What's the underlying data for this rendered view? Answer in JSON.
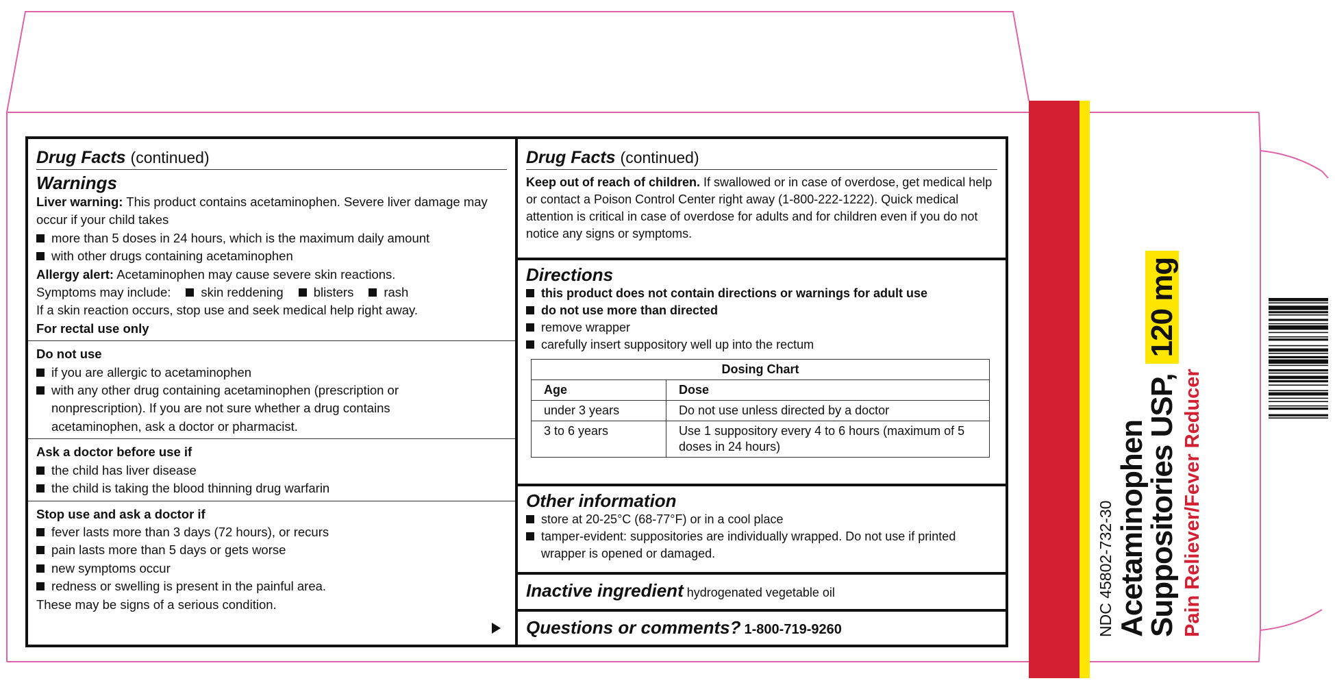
{
  "left_panel": {
    "header": {
      "title": "Drug Facts",
      "suffix": "(continued)"
    },
    "warnings": {
      "heading": "Warnings",
      "liver_label": "Liver warning:",
      "liver_text": "This product contains acetaminophen. Severe liver damage may occur if your child takes",
      "liver_items": [
        "more than 5 doses in 24 hours, which is the maximum daily amount",
        "with other drugs containing acetaminophen"
      ],
      "allergy_label": "Allergy alert:",
      "allergy_text": "Acetaminophen may cause severe skin reactions.",
      "symptoms_intro": "Symptoms may include:",
      "symptoms": [
        "skin reddening",
        "blisters",
        "rash"
      ],
      "skin_reaction": "If a skin reaction occurs, stop use and seek medical help right away.",
      "rectal": "For rectal use only"
    },
    "do_not_use": {
      "heading": "Do not use",
      "items": [
        "if you are allergic to acetaminophen",
        "with any other drug containing acetaminophen (prescription or nonprescription). If you are not sure whether a drug contains acetaminophen, ask a doctor or pharmacist."
      ]
    },
    "ask_doctor": {
      "heading": "Ask a doctor before use if",
      "items": [
        "the child has liver disease",
        "the child is taking the blood thinning drug warfarin"
      ]
    },
    "stop_use": {
      "heading": "Stop use and ask a doctor if",
      "items": [
        "fever lasts more than 3 days (72 hours), or recurs",
        "pain lasts more than 5 days or gets worse",
        "new symptoms occur",
        "redness or swelling is present in the painful area."
      ],
      "footer": "These may be signs of a serious condition."
    }
  },
  "right_panel": {
    "header": {
      "title": "Drug Facts",
      "suffix": "(continued)"
    },
    "keep_out": {
      "label": "Keep out of reach of children.",
      "text": "If swallowed or in case of overdose, get medical help or contact a Poison Control Center right away (1-800-222-1222). Quick medical attention is critical in case of overdose for adults and for children even if you do not notice any signs or symptoms."
    },
    "directions": {
      "heading": "Directions",
      "bold_items": [
        "this product does not contain directions or warnings for adult use",
        "do not use more than directed"
      ],
      "items": [
        "remove wrapper",
        "carefully insert suppository well up into the rectum"
      ],
      "dosing_chart": {
        "title": "Dosing Chart",
        "columns": [
          "Age",
          "Dose"
        ],
        "rows": [
          [
            "under 3 years",
            "Do not use unless directed by a doctor"
          ],
          [
            "3 to 6 years",
            "Use 1 suppository every 4 to 6 hours (maximum of 5 doses in 24 hours)"
          ]
        ]
      }
    },
    "other_information": {
      "heading": "Other information",
      "items": [
        "store at 20-25°C (68-77°F) or in a cool place",
        "tamper-evident: suppositories are individually wrapped. Do not use if printed wrapper is opened or damaged."
      ]
    },
    "inactive_ingredient": {
      "heading": "Inactive ingredient",
      "text": "hydrogenated vegetable oil"
    },
    "questions": {
      "heading": "Questions or comments?",
      "phone": "1-800-719-9260"
    }
  },
  "side_panel": {
    "ndc": "NDC 45802-732-30",
    "product_line1": "Acetaminophen",
    "product_line2": "Suppositories USP,",
    "strength": "120 mg",
    "subtitle": "Pain Reliever/Fever Reducer"
  }
}
